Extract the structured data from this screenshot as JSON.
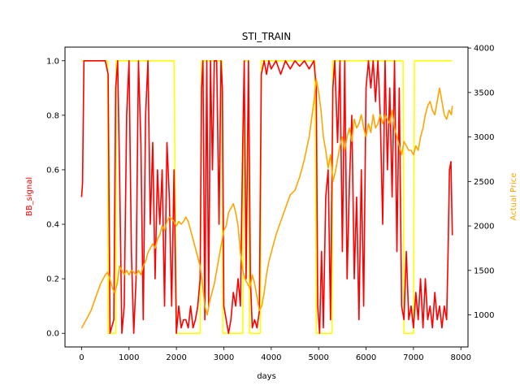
{
  "chart_data": {
    "type": "line",
    "title": "STI_TRAIN",
    "xlabel": "days",
    "ylabel_left": "BB_signal",
    "ylabel_right": "Actual Price",
    "xlim": [
      -350,
      8150
    ],
    "ylim_left": [
      -0.05,
      1.05
    ],
    "ylim_right": [
      640,
      4010
    ],
    "x_ticks": [
      0,
      1000,
      2000,
      3000,
      4000,
      5000,
      6000,
      7000,
      8000
    ],
    "y_ticks_left": [
      0.0,
      0.2,
      0.4,
      0.6,
      0.8,
      1.0
    ],
    "y_ticks_right": [
      1000,
      1500,
      2000,
      2500,
      3000,
      3500,
      4000
    ],
    "grid": false,
    "series": [
      {
        "axis": "left",
        "color": "#ffff00",
        "points": [
          [
            0,
            1
          ],
          [
            550,
            1
          ],
          [
            560,
            0
          ],
          [
            720,
            0
          ],
          [
            730,
            1
          ],
          [
            1950,
            1
          ],
          [
            2000,
            0
          ],
          [
            2500,
            0
          ],
          [
            2530,
            1
          ],
          [
            2960,
            1
          ],
          [
            2980,
            0
          ],
          [
            3400,
            0
          ],
          [
            3430,
            1
          ],
          [
            3520,
            1
          ],
          [
            3540,
            0
          ],
          [
            3770,
            0
          ],
          [
            3790,
            1
          ],
          [
            4920,
            1
          ],
          [
            4950,
            0
          ],
          [
            5280,
            0
          ],
          [
            5300,
            1
          ],
          [
            6780,
            1
          ],
          [
            6800,
            0
          ],
          [
            7000,
            0
          ],
          [
            7020,
            1
          ],
          [
            7820,
            1
          ]
        ]
      },
      {
        "axis": "left",
        "color": "#ff0000",
        "points": [
          [
            0,
            0.5
          ],
          [
            20,
            0.55
          ],
          [
            50,
            1
          ],
          [
            500,
            1
          ],
          [
            560,
            0.95
          ],
          [
            600,
            0
          ],
          [
            680,
            0.05
          ],
          [
            720,
            0.9
          ],
          [
            760,
            1
          ],
          [
            800,
            0.6
          ],
          [
            850,
            0
          ],
          [
            900,
            0.1
          ],
          [
            950,
            0.8
          ],
          [
            1000,
            1
          ],
          [
            1050,
            0.3
          ],
          [
            1100,
            0
          ],
          [
            1150,
            0.2
          ],
          [
            1200,
            1
          ],
          [
            1250,
            0.7
          ],
          [
            1300,
            0.05
          ],
          [
            1350,
            0.8
          ],
          [
            1400,
            1
          ],
          [
            1450,
            0.4
          ],
          [
            1500,
            0.7
          ],
          [
            1550,
            0.2
          ],
          [
            1600,
            0.6
          ],
          [
            1650,
            0.4
          ],
          [
            1700,
            0.6
          ],
          [
            1750,
            0.1
          ],
          [
            1800,
            0.7
          ],
          [
            1850,
            0.5
          ],
          [
            1900,
            0.1
          ],
          [
            1950,
            0.6
          ],
          [
            2000,
            0
          ],
          [
            2050,
            0.1
          ],
          [
            2100,
            0.02
          ],
          [
            2150,
            0.05
          ],
          [
            2200,
            0.05
          ],
          [
            2250,
            0.02
          ],
          [
            2300,
            0.1
          ],
          [
            2350,
            0.02
          ],
          [
            2400,
            0.05
          ],
          [
            2450,
            0.1
          ],
          [
            2500,
            0.2
          ],
          [
            2530,
            0.9
          ],
          [
            2560,
            1
          ],
          [
            2600,
            0.05
          ],
          [
            2640,
            1
          ],
          [
            2680,
            0.1
          ],
          [
            2720,
            1
          ],
          [
            2760,
            0.6
          ],
          [
            2800,
            1
          ],
          [
            2850,
            1
          ],
          [
            2900,
            0.4
          ],
          [
            2940,
            1
          ],
          [
            2970,
            0.9
          ],
          [
            3000,
            0.1
          ],
          [
            3050,
            0.05
          ],
          [
            3100,
            0
          ],
          [
            3150,
            0.05
          ],
          [
            3200,
            0.15
          ],
          [
            3250,
            0.1
          ],
          [
            3300,
            0.2
          ],
          [
            3350,
            0.1
          ],
          [
            3400,
            0.7
          ],
          [
            3430,
            1
          ],
          [
            3470,
            0.2
          ],
          [
            3520,
            1
          ],
          [
            3560,
            0.2
          ],
          [
            3600,
            0.02
          ],
          [
            3650,
            0.05
          ],
          [
            3700,
            0.02
          ],
          [
            3750,
            0.08
          ],
          [
            3790,
            0.95
          ],
          [
            3850,
            1
          ],
          [
            3900,
            0.95
          ],
          [
            3950,
            1
          ],
          [
            4000,
            0.97
          ],
          [
            4100,
            1
          ],
          [
            4200,
            0.95
          ],
          [
            4300,
            1
          ],
          [
            4400,
            0.97
          ],
          [
            4500,
            1
          ],
          [
            4600,
            0.98
          ],
          [
            4700,
            1
          ],
          [
            4800,
            0.97
          ],
          [
            4900,
            1
          ],
          [
            4950,
            0.9
          ],
          [
            4980,
            0.1
          ],
          [
            5020,
            0
          ],
          [
            5060,
            0.3
          ],
          [
            5100,
            0.02
          ],
          [
            5150,
            0.5
          ],
          [
            5200,
            0.6
          ],
          [
            5250,
            0.05
          ],
          [
            5300,
            0.9
          ],
          [
            5340,
            1
          ],
          [
            5400,
            0.7
          ],
          [
            5450,
            1
          ],
          [
            5500,
            0.3
          ],
          [
            5550,
            1
          ],
          [
            5600,
            0.2
          ],
          [
            5650,
            0.55
          ],
          [
            5700,
            0.8
          ],
          [
            5750,
            0.2
          ],
          [
            5800,
            0.5
          ],
          [
            5850,
            0.05
          ],
          [
            5900,
            0.6
          ],
          [
            5950,
            0.1
          ],
          [
            6000,
            0.9
          ],
          [
            6050,
            1
          ],
          [
            6100,
            0.9
          ],
          [
            6150,
            1
          ],
          [
            6200,
            0.85
          ],
          [
            6250,
            1
          ],
          [
            6300,
            0.8
          ],
          [
            6350,
            0.4
          ],
          [
            6400,
            1
          ],
          [
            6450,
            0.6
          ],
          [
            6500,
            0.9
          ],
          [
            6550,
            0.5
          ],
          [
            6600,
            1
          ],
          [
            6650,
            0.3
          ],
          [
            6700,
            0.9
          ],
          [
            6750,
            0.1
          ],
          [
            6800,
            0.05
          ],
          [
            6850,
            0.3
          ],
          [
            6900,
            0.05
          ],
          [
            6950,
            0.1
          ],
          [
            7000,
            0.02
          ],
          [
            7050,
            0.15
          ],
          [
            7100,
            0.05
          ],
          [
            7150,
            0.2
          ],
          [
            7200,
            0.02
          ],
          [
            7250,
            0.2
          ],
          [
            7300,
            0.05
          ],
          [
            7350,
            0.1
          ],
          [
            7400,
            0.02
          ],
          [
            7450,
            0.15
          ],
          [
            7500,
            0.05
          ],
          [
            7550,
            0.1
          ],
          [
            7600,
            0.02
          ],
          [
            7650,
            0.1
          ],
          [
            7700,
            0.05
          ],
          [
            7730,
            0.3
          ],
          [
            7760,
            0.6
          ],
          [
            7790,
            0.63
          ],
          [
            7820,
            0.36
          ]
        ]
      },
      {
        "axis": "right",
        "color": "#ffa500",
        "points": [
          [
            0,
            850
          ],
          [
            50,
            900
          ],
          [
            100,
            950
          ],
          [
            200,
            1050
          ],
          [
            300,
            1200
          ],
          [
            400,
            1350
          ],
          [
            500,
            1450
          ],
          [
            550,
            1480
          ],
          [
            600,
            1400
          ],
          [
            650,
            1300
          ],
          [
            700,
            1250
          ],
          [
            750,
            1350
          ],
          [
            800,
            1550
          ],
          [
            850,
            1500
          ],
          [
            900,
            1450
          ],
          [
            950,
            1500
          ],
          [
            1000,
            1450
          ],
          [
            1050,
            1500
          ],
          [
            1100,
            1480
          ],
          [
            1150,
            1450
          ],
          [
            1200,
            1500
          ],
          [
            1250,
            1450
          ],
          [
            1300,
            1550
          ],
          [
            1350,
            1600
          ],
          [
            1400,
            1700
          ],
          [
            1450,
            1750
          ],
          [
            1500,
            1800
          ],
          [
            1550,
            1750
          ],
          [
            1600,
            1850
          ],
          [
            1650,
            1900
          ],
          [
            1700,
            2000
          ],
          [
            1750,
            1950
          ],
          [
            1800,
            2050
          ],
          [
            1850,
            2100
          ],
          [
            1900,
            2080
          ],
          [
            1950,
            2050
          ],
          [
            2000,
            2000
          ],
          [
            2050,
            2050
          ],
          [
            2100,
            2020
          ],
          [
            2150,
            2050
          ],
          [
            2200,
            2100
          ],
          [
            2250,
            2050
          ],
          [
            2300,
            1950
          ],
          [
            2350,
            1850
          ],
          [
            2400,
            1750
          ],
          [
            2450,
            1650
          ],
          [
            2500,
            1550
          ],
          [
            2550,
            1350
          ],
          [
            2600,
            1100
          ],
          [
            2650,
            1000
          ],
          [
            2700,
            1150
          ],
          [
            2750,
            1250
          ],
          [
            2800,
            1350
          ],
          [
            2850,
            1500
          ],
          [
            2900,
            1650
          ],
          [
            2950,
            1800
          ],
          [
            3000,
            1950
          ],
          [
            3050,
            2000
          ],
          [
            3100,
            2150
          ],
          [
            3150,
            2200
          ],
          [
            3200,
            2250
          ],
          [
            3250,
            2150
          ],
          [
            3300,
            2000
          ],
          [
            3350,
            1700
          ],
          [
            3400,
            1500
          ],
          [
            3450,
            1400
          ],
          [
            3500,
            1350
          ],
          [
            3550,
            1300
          ],
          [
            3600,
            1450
          ],
          [
            3650,
            1350
          ],
          [
            3700,
            1200
          ],
          [
            3750,
            1050
          ],
          [
            3800,
            1100
          ],
          [
            3850,
            1250
          ],
          [
            3900,
            1450
          ],
          [
            3950,
            1600
          ],
          [
            4000,
            1700
          ],
          [
            4100,
            1900
          ],
          [
            4200,
            2050
          ],
          [
            4300,
            2200
          ],
          [
            4400,
            2350
          ],
          [
            4500,
            2400
          ],
          [
            4600,
            2550
          ],
          [
            4700,
            2750
          ],
          [
            4800,
            3000
          ],
          [
            4900,
            3400
          ],
          [
            4950,
            3650
          ],
          [
            5000,
            3500
          ],
          [
            5050,
            3300
          ],
          [
            5100,
            3000
          ],
          [
            5150,
            2850
          ],
          [
            5200,
            2650
          ],
          [
            5250,
            2800
          ],
          [
            5300,
            2500
          ],
          [
            5350,
            2600
          ],
          [
            5400,
            2750
          ],
          [
            5450,
            2900
          ],
          [
            5500,
            3000
          ],
          [
            5550,
            2850
          ],
          [
            5600,
            3000
          ],
          [
            5650,
            3100
          ],
          [
            5700,
            2950
          ],
          [
            5750,
            3200
          ],
          [
            5800,
            3100
          ],
          [
            5850,
            3150
          ],
          [
            5900,
            3250
          ],
          [
            5950,
            3100
          ],
          [
            6000,
            3000
          ],
          [
            6050,
            3150
          ],
          [
            6100,
            3050
          ],
          [
            6150,
            3250
          ],
          [
            6200,
            3100
          ],
          [
            6250,
            3150
          ],
          [
            6300,
            3250
          ],
          [
            6350,
            3150
          ],
          [
            6400,
            3250
          ],
          [
            6450,
            3200
          ],
          [
            6500,
            3150
          ],
          [
            6550,
            3300
          ],
          [
            6600,
            3100
          ],
          [
            6650,
            3000
          ],
          [
            6700,
            2900
          ],
          [
            6750,
            2800
          ],
          [
            6800,
            2950
          ],
          [
            6850,
            2900
          ],
          [
            6900,
            2850
          ],
          [
            6950,
            2850
          ],
          [
            7000,
            2800
          ],
          [
            7050,
            2900
          ],
          [
            7100,
            2850
          ],
          [
            7150,
            3000
          ],
          [
            7200,
            3100
          ],
          [
            7250,
            3250
          ],
          [
            7300,
            3350
          ],
          [
            7350,
            3400
          ],
          [
            7400,
            3300
          ],
          [
            7450,
            3250
          ],
          [
            7500,
            3400
          ],
          [
            7550,
            3550
          ],
          [
            7600,
            3400
          ],
          [
            7650,
            3250
          ],
          [
            7700,
            3200
          ],
          [
            7750,
            3300
          ],
          [
            7800,
            3250
          ],
          [
            7820,
            3350
          ]
        ]
      }
    ]
  }
}
